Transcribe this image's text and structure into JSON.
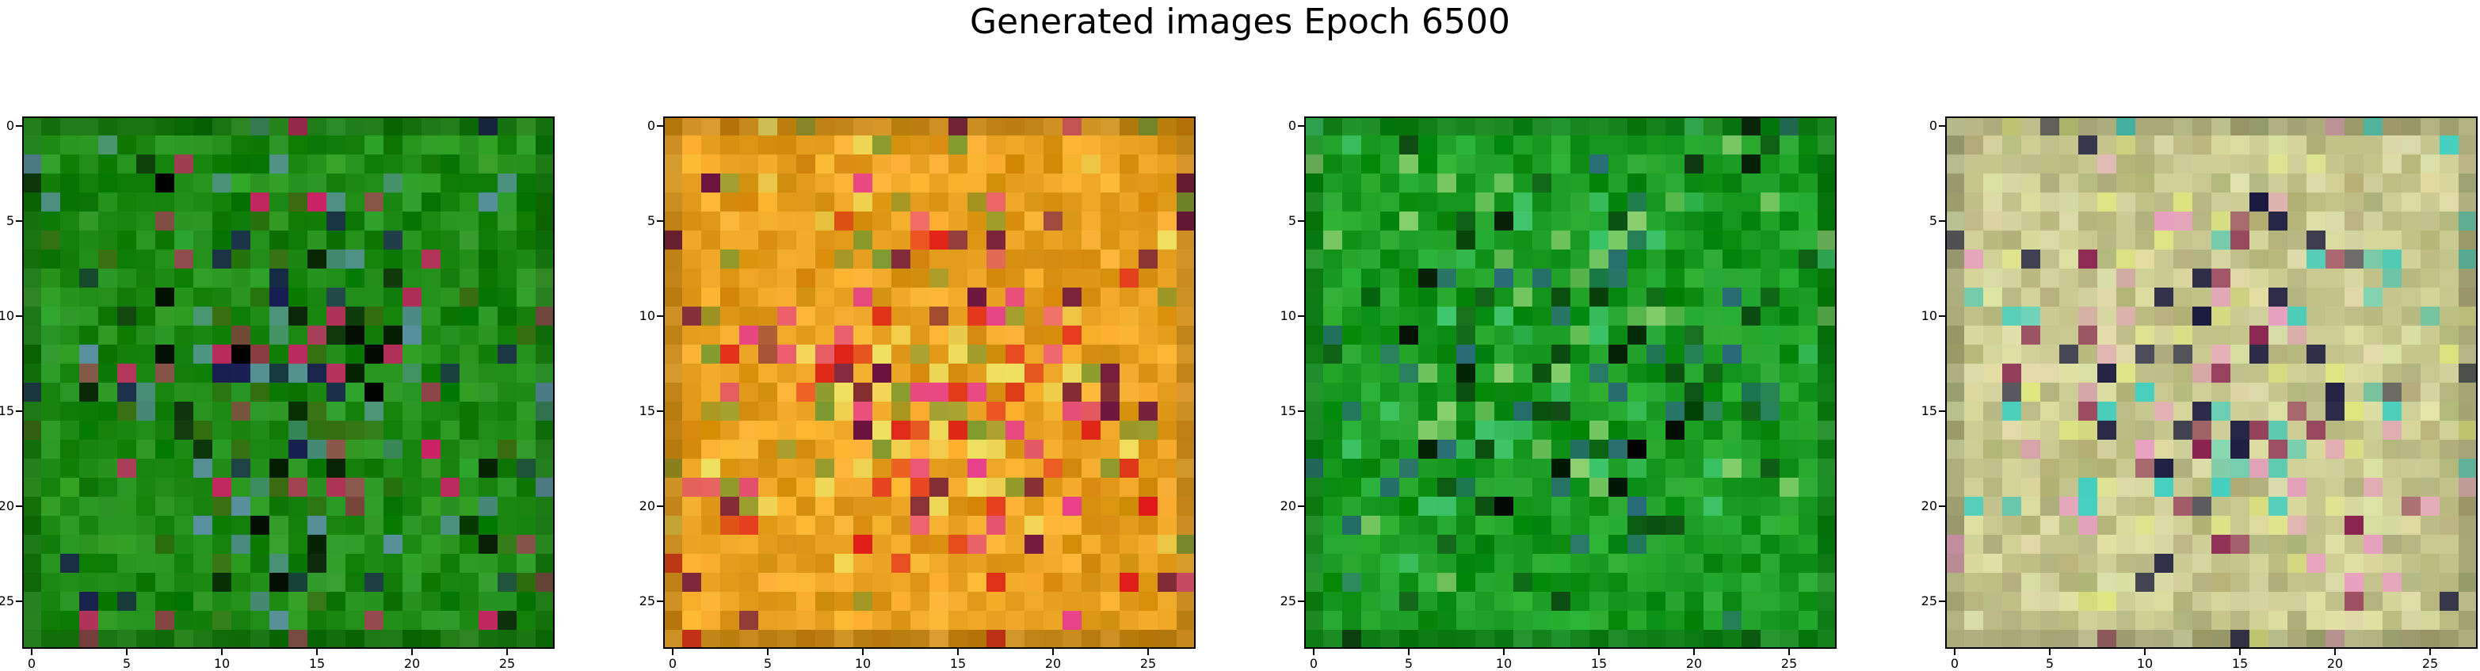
{
  "figure": {
    "title": "Generated images Epoch 6500"
  },
  "chart_data": [
    {
      "type": "heatmap",
      "image": "generated-image-1",
      "grid": [
        28,
        28
      ],
      "dominant_color": "green",
      "colors": {
        "base": "#1d8a14",
        "accents": [
          "#000000",
          "#1a1a55",
          "#5a8fa0",
          "#cc2266",
          "#3a6b10"
        ]
      },
      "xlim": [
        -0.5,
        27.5
      ],
      "ylim": [
        27.5,
        -0.5
      ],
      "xticks": [
        "0",
        "5",
        "10",
        "15",
        "20",
        "25"
      ],
      "yticks": [
        "0",
        "5",
        "10",
        "15",
        "20",
        "25"
      ]
    },
    {
      "type": "heatmap",
      "image": "generated-image-2",
      "grid": [
        28,
        28
      ],
      "dominant_color": "orange-yellow",
      "colors": {
        "base": "#e8a020",
        "accents": [
          "#e01818",
          "#e8408a",
          "#f0e060",
          "#6a1040",
          "#7a9a30"
        ]
      },
      "xlim": [
        -0.5,
        27.5
      ],
      "ylim": [
        27.5,
        -0.5
      ],
      "xticks": [
        "0",
        "5",
        "10",
        "15",
        "20",
        "25"
      ],
      "yticks": [
        "0",
        "5",
        "10",
        "15",
        "20",
        "25"
      ]
    },
    {
      "type": "heatmap",
      "image": "generated-image-3",
      "grid": [
        28,
        28
      ],
      "dominant_color": "green",
      "colors": {
        "base": "#189a20",
        "accents": [
          "#000000",
          "#40c870",
          "#2a6a78",
          "#0a4a10",
          "#8ad070"
        ]
      },
      "xlim": [
        -0.5,
        27.5
      ],
      "ylim": [
        27.5,
        -0.5
      ],
      "xticks": [
        "0",
        "5",
        "10",
        "15",
        "20",
        "25"
      ],
      "yticks": [
        "0",
        "5",
        "10",
        "15",
        "20",
        "25"
      ]
    },
    {
      "type": "heatmap",
      "image": "generated-image-4",
      "grid": [
        28,
        28
      ],
      "dominant_color": "pastel-mixed",
      "colors": {
        "base": "#c8c890",
        "accents": [
          "#e8a0c0",
          "#40d0c0",
          "#1a1a40",
          "#8a2050",
          "#e0e880"
        ]
      },
      "xlim": [
        -0.5,
        27.5
      ],
      "ylim": [
        27.5,
        -0.5
      ],
      "xticks": [
        "0",
        "5",
        "10",
        "15",
        "20",
        "25"
      ],
      "yticks": [
        "0",
        "5",
        "10",
        "15",
        "20",
        "25"
      ]
    }
  ]
}
